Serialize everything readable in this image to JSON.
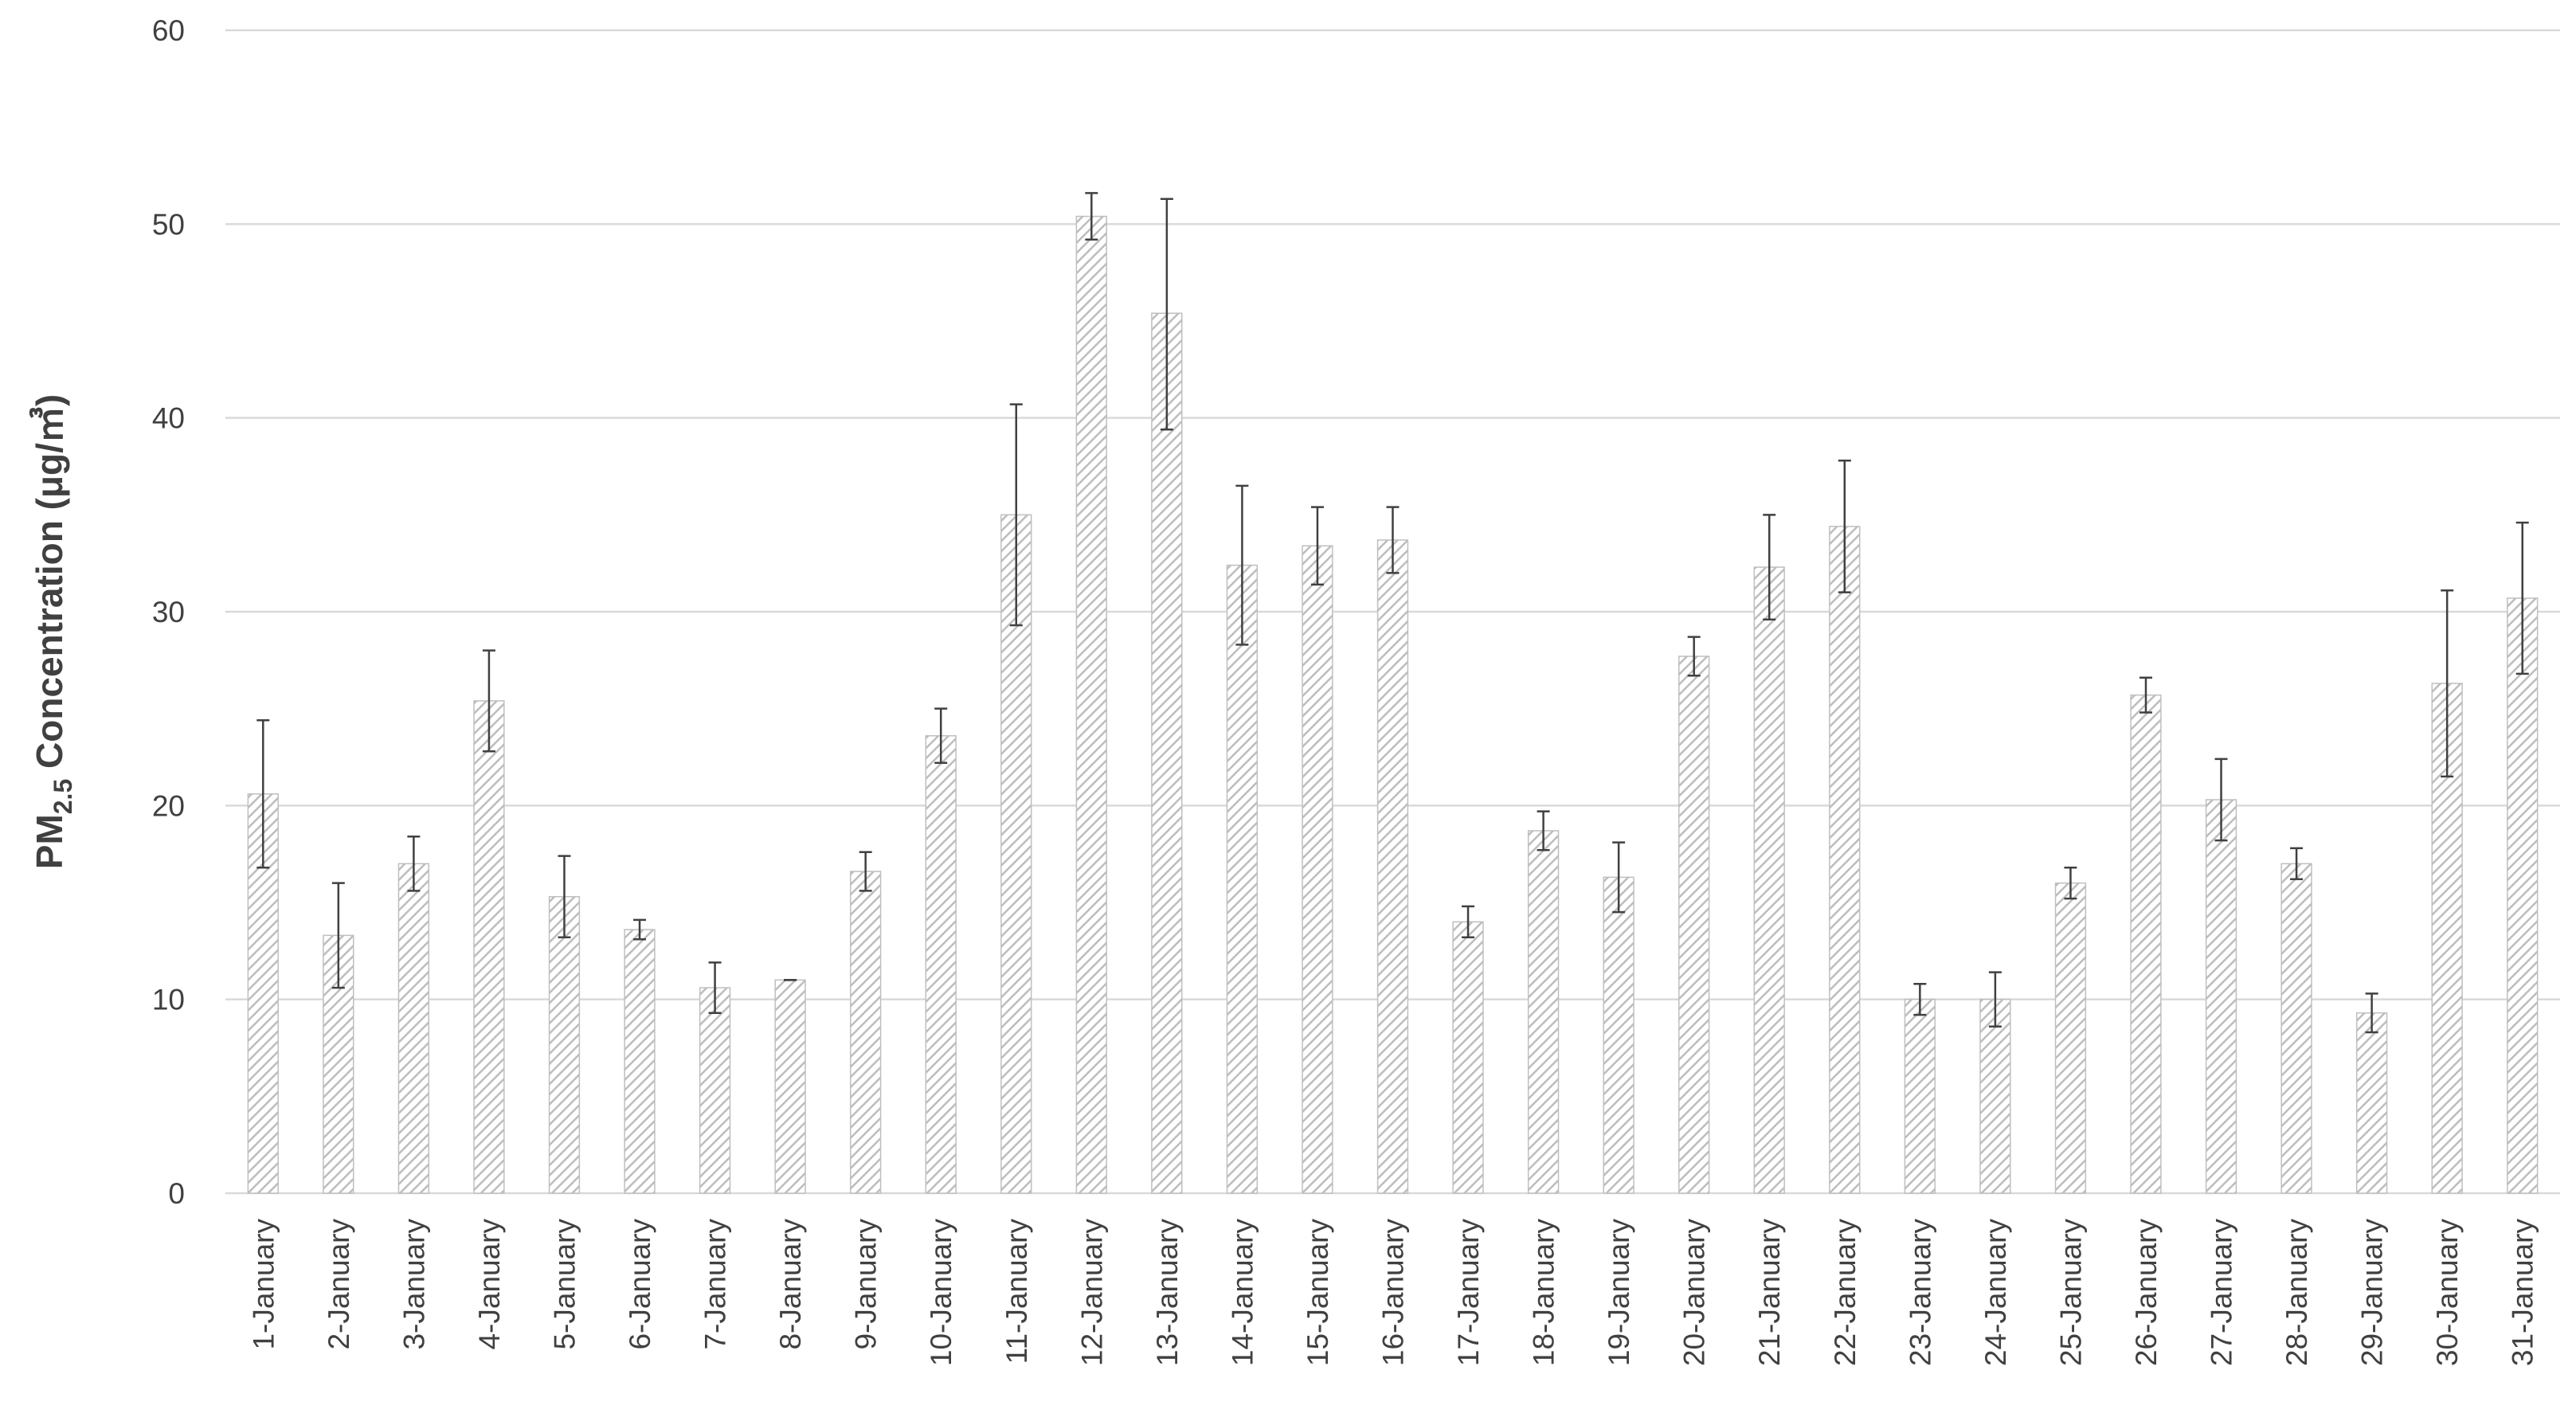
{
  "chart_data": {
    "type": "bar",
    "title": "",
    "xlabel": "",
    "ylabel": {
      "prefix": "PM",
      "subscript": "2.5",
      "suffix": " Concentration (μg/㎥)"
    },
    "ylim": [
      0,
      60
    ],
    "yticks": [
      0,
      10,
      20,
      30,
      40,
      50,
      60
    ],
    "grid": true,
    "legend": "none",
    "bar_pattern": "diagonal-hatch",
    "colors": {
      "bar_fill": "#c8c8c8",
      "bar_stroke": "#bfbfbf",
      "error_bar": "#404040",
      "grid": "#d9d9d9",
      "text": "#404040"
    },
    "categories": [
      "1-January",
      "2-January",
      "3-January",
      "4-January",
      "5-January",
      "6-January",
      "7-January",
      "8-January",
      "9-January",
      "10-January",
      "11-January",
      "12-January",
      "13-January",
      "14-January",
      "15-January",
      "16-January",
      "17-January",
      "18-January",
      "19-January",
      "20-January",
      "21-January",
      "22-January",
      "23-January",
      "24-January",
      "25-January",
      "26-January",
      "27-January",
      "28-January",
      "29-January",
      "30-January",
      "31-January"
    ],
    "values": [
      20.6,
      13.3,
      17.0,
      25.4,
      15.3,
      13.6,
      10.6,
      11.0,
      16.6,
      23.6,
      35.0,
      50.4,
      45.4,
      32.4,
      33.4,
      33.7,
      14.0,
      18.7,
      16.3,
      27.7,
      32.3,
      34.4,
      10.0,
      10.0,
      16.0,
      25.7,
      20.3,
      17.0,
      9.3,
      26.3,
      30.7
    ],
    "error_upper": [
      24.4,
      16.0,
      18.4,
      28.0,
      17.4,
      14.1,
      11.9,
      11.0,
      17.6,
      25.0,
      40.7,
      51.6,
      51.3,
      36.5,
      35.4,
      35.4,
      14.8,
      19.7,
      18.1,
      28.7,
      35.0,
      37.8,
      10.8,
      11.4,
      16.8,
      26.6,
      22.4,
      17.8,
      10.3,
      31.1,
      34.6
    ],
    "error_lower": [
      16.8,
      10.6,
      15.6,
      22.8,
      13.2,
      13.1,
      9.3,
      11.0,
      15.6,
      22.2,
      29.3,
      49.2,
      39.4,
      28.3,
      31.4,
      32.0,
      13.2,
      17.7,
      14.5,
      26.7,
      29.6,
      31.0,
      9.2,
      8.6,
      15.2,
      24.8,
      18.2,
      16.2,
      8.3,
      21.5,
      26.8
    ]
  }
}
